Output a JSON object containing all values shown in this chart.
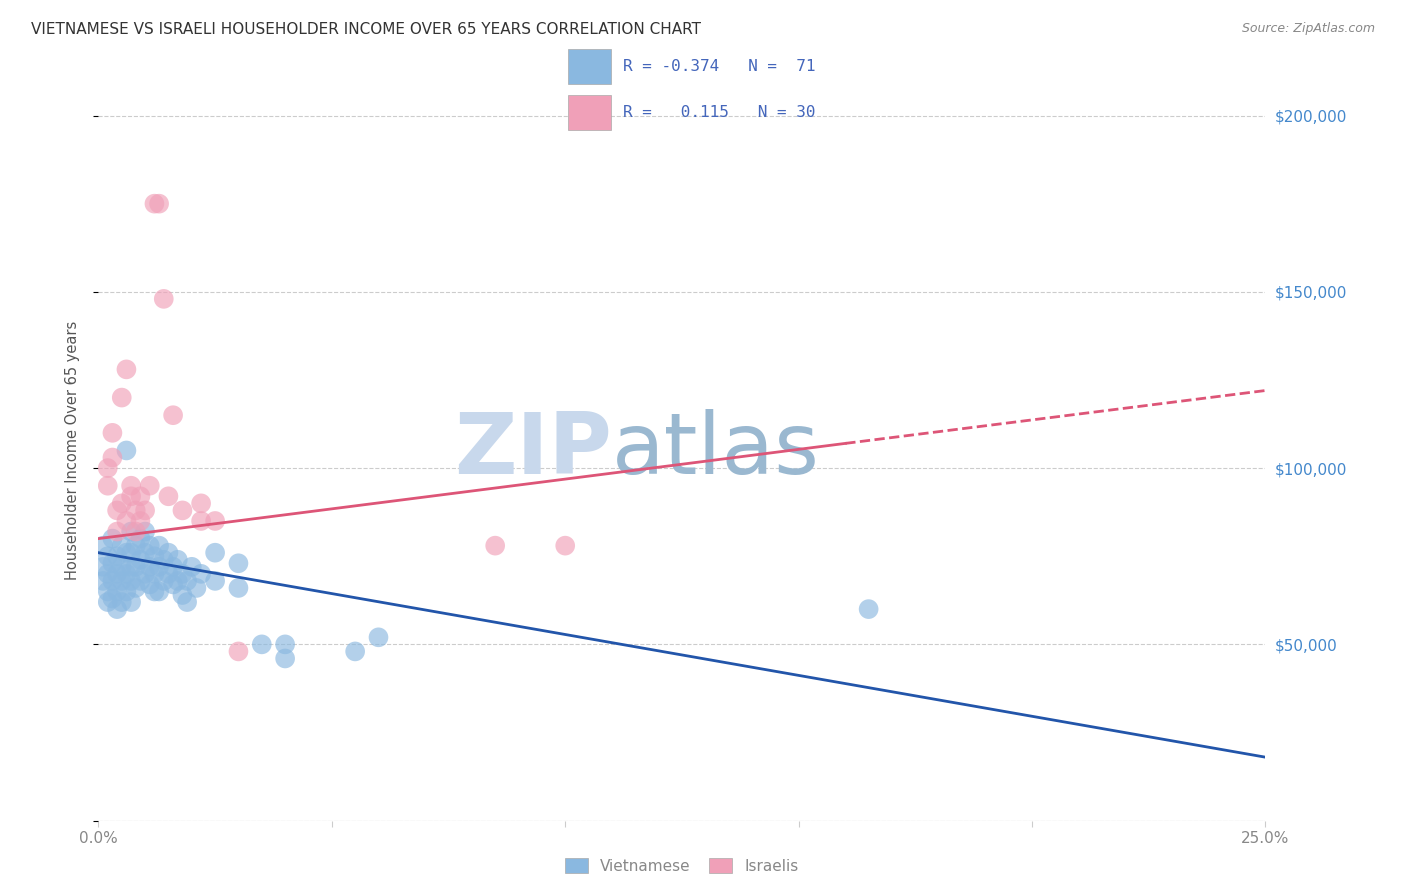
{
  "title": "VIETNAMESE VS ISRAELI HOUSEHOLDER INCOME OVER 65 YEARS CORRELATION CHART",
  "source": "Source: ZipAtlas.com",
  "ylabel": "Householder Income Over 65 years",
  "watermark_zip": "ZIP",
  "watermark_atlas": "atlas",
  "bottom_legend": [
    "Vietnamese",
    "Israelis"
  ],
  "xlim": [
    0.0,
    0.25
  ],
  "ylim": [
    0,
    210000
  ],
  "xticks": [
    0.0,
    0.05,
    0.1,
    0.15,
    0.2,
    0.25
  ],
  "xticklabels": [
    "0.0%",
    "",
    "",
    "",
    "",
    "25.0%"
  ],
  "yticks": [
    0,
    50000,
    100000,
    150000,
    200000
  ],
  "yticklabels": [
    "",
    "$50,000",
    "$100,000",
    "$150,000",
    "$200,000"
  ],
  "grid_color": "#cccccc",
  "bg_color": "#ffffff",
  "viet_color": "#8ab8e0",
  "israel_color": "#f0a0b8",
  "viet_line_color": "#2255aa",
  "israel_line_color": "#dd5577",
  "title_color": "#333333",
  "axis_label_color": "#555555",
  "tick_color": "#888888",
  "source_color": "#888888",
  "watermark_zip_color": "#c8d8ec",
  "watermark_atlas_color": "#9ab8d0",
  "right_tick_color": "#4488cc",
  "legend_text_color": "#4466bb",
  "viet_line": {
    "x0": 0.0,
    "x1": 0.25,
    "y0": 76000,
    "y1": 18000
  },
  "israel_line_solid": {
    "x0": 0.0,
    "x1": 0.16,
    "y0": 80000,
    "y1": 107000
  },
  "israel_line_dash": {
    "x0": 0.16,
    "x1": 0.25,
    "y0": 107000,
    "y1": 122000
  },
  "viet_scatter": [
    [
      0.001,
      78000
    ],
    [
      0.001,
      72000
    ],
    [
      0.001,
      68000
    ],
    [
      0.002,
      75000
    ],
    [
      0.002,
      70000
    ],
    [
      0.002,
      65000
    ],
    [
      0.002,
      62000
    ],
    [
      0.003,
      80000
    ],
    [
      0.003,
      73000
    ],
    [
      0.003,
      68000
    ],
    [
      0.003,
      63000
    ],
    [
      0.004,
      75000
    ],
    [
      0.004,
      70000
    ],
    [
      0.004,
      65000
    ],
    [
      0.004,
      60000
    ],
    [
      0.005,
      78000
    ],
    [
      0.005,
      72000
    ],
    [
      0.005,
      68000
    ],
    [
      0.005,
      62000
    ],
    [
      0.006,
      105000
    ],
    [
      0.006,
      76000
    ],
    [
      0.006,
      70000
    ],
    [
      0.006,
      65000
    ],
    [
      0.007,
      82000
    ],
    [
      0.007,
      76000
    ],
    [
      0.007,
      72000
    ],
    [
      0.007,
      68000
    ],
    [
      0.007,
      62000
    ],
    [
      0.008,
      78000
    ],
    [
      0.008,
      72000
    ],
    [
      0.008,
      66000
    ],
    [
      0.009,
      80000
    ],
    [
      0.009,
      74000
    ],
    [
      0.009,
      68000
    ],
    [
      0.01,
      82000
    ],
    [
      0.01,
      76000
    ],
    [
      0.01,
      70000
    ],
    [
      0.011,
      78000
    ],
    [
      0.011,
      72000
    ],
    [
      0.011,
      67000
    ],
    [
      0.012,
      75000
    ],
    [
      0.012,
      70000
    ],
    [
      0.012,
      65000
    ],
    [
      0.013,
      78000
    ],
    [
      0.013,
      72000
    ],
    [
      0.013,
      65000
    ],
    [
      0.014,
      74000
    ],
    [
      0.014,
      68000
    ],
    [
      0.015,
      76000
    ],
    [
      0.015,
      70000
    ],
    [
      0.016,
      72000
    ],
    [
      0.016,
      67000
    ],
    [
      0.017,
      74000
    ],
    [
      0.017,
      68000
    ],
    [
      0.018,
      70000
    ],
    [
      0.018,
      64000
    ],
    [
      0.019,
      68000
    ],
    [
      0.019,
      62000
    ],
    [
      0.02,
      72000
    ],
    [
      0.021,
      66000
    ],
    [
      0.022,
      70000
    ],
    [
      0.025,
      76000
    ],
    [
      0.025,
      68000
    ],
    [
      0.03,
      73000
    ],
    [
      0.03,
      66000
    ],
    [
      0.035,
      50000
    ],
    [
      0.04,
      50000
    ],
    [
      0.04,
      46000
    ],
    [
      0.055,
      48000
    ],
    [
      0.06,
      52000
    ],
    [
      0.165,
      60000
    ]
  ],
  "israel_scatter": [
    [
      0.002,
      95000
    ],
    [
      0.002,
      100000
    ],
    [
      0.003,
      103000
    ],
    [
      0.003,
      110000
    ],
    [
      0.004,
      88000
    ],
    [
      0.004,
      82000
    ],
    [
      0.005,
      90000
    ],
    [
      0.005,
      120000
    ],
    [
      0.006,
      85000
    ],
    [
      0.006,
      128000
    ],
    [
      0.007,
      95000
    ],
    [
      0.007,
      92000
    ],
    [
      0.008,
      88000
    ],
    [
      0.008,
      82000
    ],
    [
      0.009,
      92000
    ],
    [
      0.009,
      85000
    ],
    [
      0.01,
      88000
    ],
    [
      0.011,
      95000
    ],
    [
      0.012,
      175000
    ],
    [
      0.013,
      175000
    ],
    [
      0.014,
      148000
    ],
    [
      0.015,
      92000
    ],
    [
      0.016,
      115000
    ],
    [
      0.018,
      88000
    ],
    [
      0.022,
      90000
    ],
    [
      0.022,
      85000
    ],
    [
      0.025,
      85000
    ],
    [
      0.03,
      48000
    ],
    [
      0.085,
      78000
    ],
    [
      0.1,
      78000
    ]
  ]
}
